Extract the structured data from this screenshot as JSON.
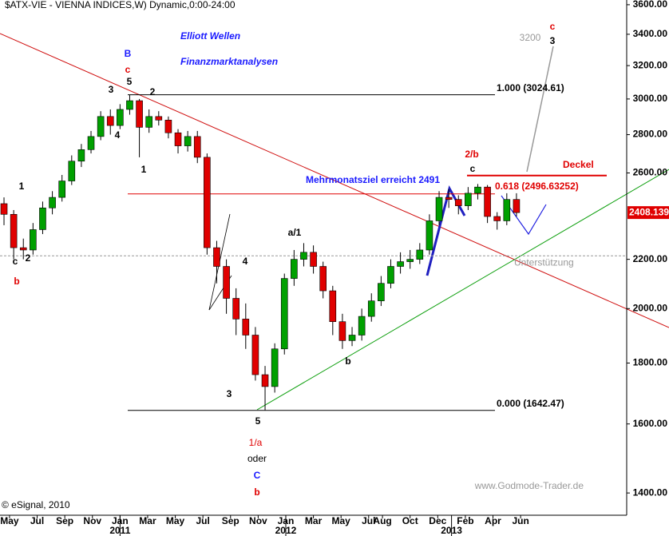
{
  "chart_data": {
    "type": "candlestick",
    "title": "$ATX-VIE - VIENNA INDICES,W) Dynamic,0:00-24:00",
    "heading": [
      "Elliott Wellen",
      "Finanzmarktanalysen"
    ],
    "watermark": "www.Godmode-Trader.de",
    "copyright": "© eSignal, 2010",
    "log_scale": true,
    "up_color": "#00a000",
    "down_color": "#e00000",
    "x": [
      -0.4,
      0.3,
      1.0,
      1.7,
      2.4,
      3.1,
      3.8,
      4.5,
      5.2,
      5.9,
      6.6,
      7.3,
      8.0,
      8.7,
      9.4,
      10.1,
      10.8,
      11.5,
      12.2,
      12.9,
      13.6,
      14.3,
      15.0,
      15.7,
      16.4,
      17.1,
      17.8,
      18.5,
      19.2,
      19.9,
      20.6,
      21.3,
      22.0,
      22.7,
      23.4,
      24.1,
      24.8,
      25.5,
      26.2,
      26.9,
      27.6,
      28.3,
      29.0,
      29.7,
      30.4,
      31.1,
      31.8,
      32.5,
      33.2,
      33.9,
      34.6,
      35.3,
      36.0,
      36.7
    ],
    "open": [
      2450,
      2400,
      2250,
      2240,
      2330,
      2430,
      2480,
      2560,
      2660,
      2720,
      2790,
      2900,
      2850,
      2940,
      2990,
      2840,
      2900,
      2880,
      2810,
      2740,
      2790,
      2680,
      2250,
      2170,
      2040,
      1960,
      1900,
      1760,
      1720,
      1850,
      2120,
      2200,
      2230,
      2170,
      2070,
      1950,
      1880,
      1900,
      1970,
      2030,
      2100,
      2170,
      2190,
      2200,
      2240,
      2370,
      2480,
      2470,
      2440,
      2500,
      2530,
      2390,
      2370,
      2470
    ],
    "high": [
      2480,
      2420,
      2290,
      2360,
      2460,
      2510,
      2590,
      2690,
      2750,
      2820,
      2930,
      2940,
      2970,
      3024.61,
      3000,
      2940,
      2930,
      2900,
      2830,
      2820,
      2820,
      2700,
      2280,
      2200,
      2080,
      2020,
      1930,
      1790,
      1870,
      2140,
      2240,
      2270,
      2260,
      2190,
      2090,
      1980,
      1930,
      2000,
      2060,
      2130,
      2200,
      2230,
      2240,
      2270,
      2400,
      2510,
      2520,
      2490,
      2530,
      2545,
      2540,
      2410,
      2500,
      2500
    ],
    "low": [
      2350,
      2200,
      2200,
      2220,
      2310,
      2400,
      2460,
      2540,
      2630,
      2700,
      2770,
      2800,
      2830,
      2910,
      2680,
      2810,
      2850,
      2780,
      2700,
      2710,
      2650,
      2220,
      2100,
      1980,
      1900,
      1850,
      1740,
      1642.47,
      1700,
      1830,
      2090,
      2170,
      2140,
      2040,
      1900,
      1850,
      1860,
      1880,
      1950,
      2010,
      2080,
      2140,
      2160,
      2180,
      2220,
      2350,
      2430,
      2400,
      2420,
      2470,
      2360,
      2330,
      2350,
      2390
    ],
    "close": [
      2400,
      2250,
      2240,
      2330,
      2430,
      2480,
      2560,
      2660,
      2720,
      2790,
      2900,
      2850,
      2940,
      2990,
      2840,
      2900,
      2880,
      2810,
      2740,
      2790,
      2680,
      2250,
      2170,
      2040,
      1960,
      1900,
      1760,
      1720,
      1850,
      2120,
      2200,
      2230,
      2170,
      2070,
      1950,
      1880,
      1900,
      1970,
      2030,
      2100,
      2170,
      2190,
      2200,
      2240,
      2370,
      2480,
      2470,
      2440,
      2500,
      2530,
      2390,
      2370,
      2470,
      2408.139
    ],
    "xlim": [
      -0.69,
      44.68
    ],
    "ylim": [
      1341,
      3633
    ],
    "xticks": [
      {
        "value": 0,
        "label": "May"
      },
      {
        "value": 2,
        "label": "Jul"
      },
      {
        "value": 4,
        "label": "Sep"
      },
      {
        "value": 6,
        "label": "Nov"
      },
      {
        "value": 8,
        "label": "Jan"
      },
      {
        "value": 10,
        "label": "Mar"
      },
      {
        "value": 12,
        "label": "May"
      },
      {
        "value": 14,
        "label": "Jul"
      },
      {
        "value": 16,
        "label": "Sep"
      },
      {
        "value": 18,
        "label": "Nov"
      },
      {
        "value": 20,
        "label": "Jan"
      },
      {
        "value": 22,
        "label": "Mar"
      },
      {
        "value": 24,
        "label": "May"
      },
      {
        "value": 26,
        "label": "Jul"
      },
      {
        "value": 27,
        "label": "Aug"
      },
      {
        "value": 29,
        "label": "Oct"
      },
      {
        "value": 31,
        "label": "Dec"
      },
      {
        "value": 33,
        "label": "Feb"
      },
      {
        "value": 35,
        "label": "Apr"
      },
      {
        "value": 37,
        "label": "Jun"
      }
    ],
    "year_ticks": [
      {
        "value": 8,
        "label": "2011"
      },
      {
        "value": 20,
        "label": "2012"
      },
      {
        "value": 32,
        "label": "2013"
      }
    ],
    "yticks": [
      {
        "value": 1400,
        "label": "1400.00"
      },
      {
        "value": 1600,
        "label": "1600.00"
      },
      {
        "value": 1800,
        "label": "1800.00"
      },
      {
        "value": 2000,
        "label": "2000.00"
      },
      {
        "value": 2200,
        "label": "2200.00"
      },
      {
        "value": 2600,
        "label": "2600.00"
      },
      {
        "value": 2800,
        "label": "2800.00"
      },
      {
        "value": 3000,
        "label": "3000.00"
      },
      {
        "value": 3200,
        "label": "3200.00"
      },
      {
        "value": 3400,
        "label": "3400.00"
      },
      {
        "value": 3600,
        "label": "3600.00"
      }
    ],
    "levels": [
      {
        "value": 3024.61,
        "label": "1.000 (3024.61)",
        "color": "#000000"
      },
      {
        "value": 1642.47,
        "label": "0.000 (1642.47)",
        "color": "#000000"
      },
      {
        "value": 2496.63252,
        "label": "0.618 (2496.63252)",
        "color": "#e00000"
      },
      {
        "value": 2587,
        "label": "Deckel",
        "color": "#e00000"
      },
      {
        "value": 2215,
        "label": "Unterstützung",
        "color": "#999999"
      }
    ],
    "annotations": [
      "B",
      "c",
      "5",
      "3",
      "2",
      "4",
      "1",
      "1",
      "c",
      "2",
      "b",
      "4",
      "3",
      "5",
      "1/a",
      "oder",
      "C",
      "b",
      "a/1",
      "b",
      "2/b",
      "c",
      "c",
      "3",
      3200,
      "Mehrmonatsziel erreicht 2491"
    ]
  }
}
